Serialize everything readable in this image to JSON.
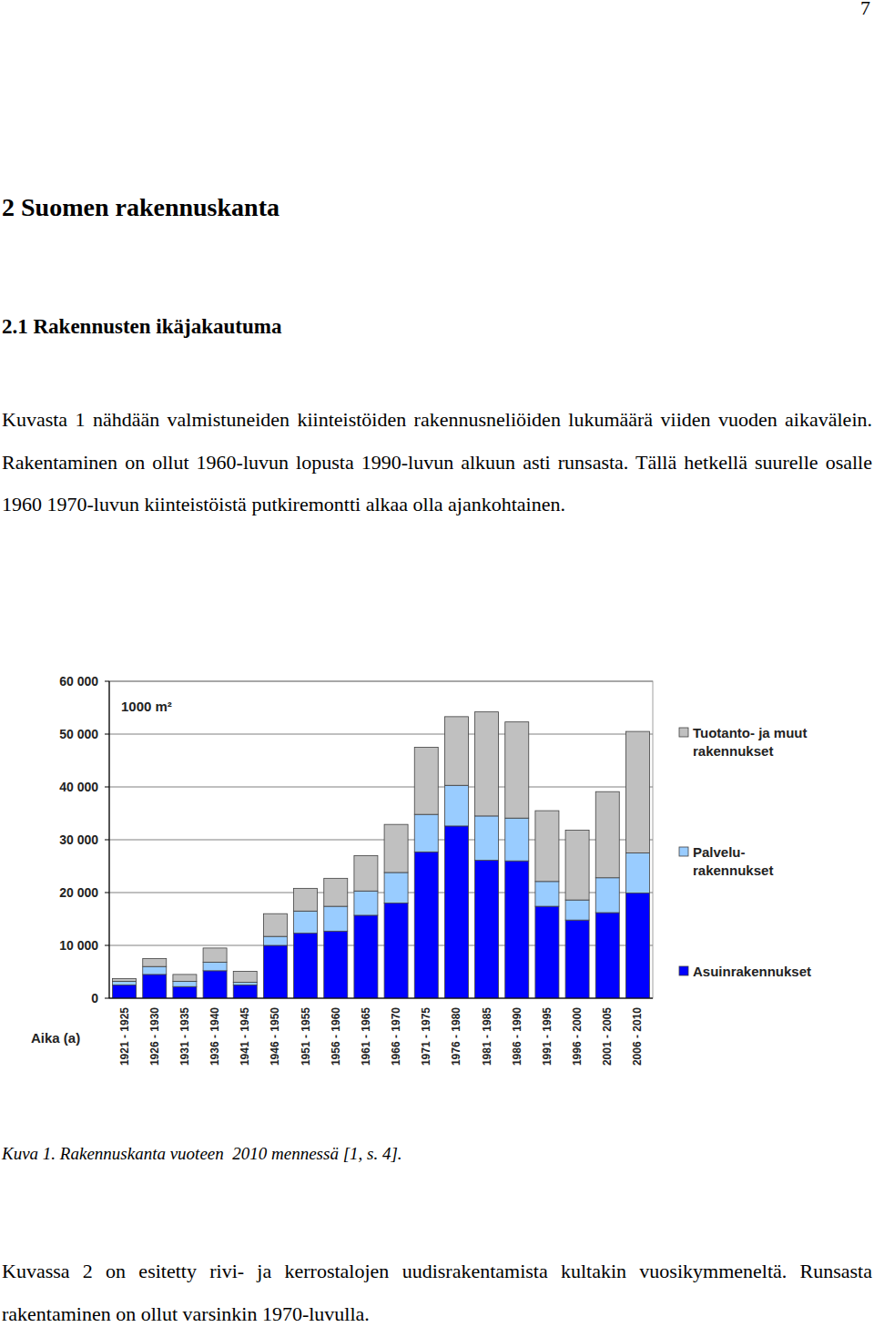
{
  "page_number": "7",
  "heading": "2 Suomen rakennuskanta",
  "subheading": "2.1 Rakennusten ikäjakautuma",
  "paragraphs": [
    "Kuvasta 1 nähdään valmistuneiden kiinteistöiden rakennusneliöiden lukumäärä viiden vuoden aikavälein. Rakentaminen on ollut 1960-luvun lopusta 1990-luvun alkuun asti runsasta. Tällä hetkellä suurelle osalle 1960 1970-luvun kiinteistöistä putkiremontti alkaa olla ajankohtainen.",
    "Kuvassa 2 on esitetty rivi- ja kerrostalojen uudisrakentamista kultakin vuosikymmeneltä. Runsasta rakentaminen on ollut varsinkin 1970-luvulla."
  ],
  "caption": "Kuva 1. Rakennuskanta vuoteen  2010 mennessä [1, s. 4].",
  "chart_data": {
    "type": "bar",
    "stacked": true,
    "grid": true,
    "legend": "right",
    "ylabel": "1000 m²",
    "xlabel": "Aika (a)",
    "categories": [
      "1921 - 1925",
      "1926 - 1930",
      "1931 - 1935",
      "1936 - 1940",
      "1941 - 1945",
      "1946 - 1950",
      "1951 - 1955",
      "1956 - 1960",
      "1961 - 1965",
      "1966 - 1970",
      "1971 - 1975",
      "1976 - 1980",
      "1981 - 1985",
      "1986 - 1990",
      "1991 - 1995",
      "1996 - 2000",
      "2001 - 2005",
      "2006 - 2010"
    ],
    "series": [
      {
        "name": "Asuinrakennukset",
        "color": "#0000ff",
        "values": [
          2500,
          4500,
          2200,
          5200,
          2500,
          10000,
          12300,
          12700,
          15700,
          18000,
          27700,
          32600,
          26100,
          26000,
          17400,
          14800,
          16200,
          19900
        ]
      },
      {
        "name": "Palvelu-rakennukset",
        "color": "#99ccff",
        "values": [
          700,
          1500,
          1000,
          1600,
          500,
          1700,
          4200,
          4700,
          4600,
          5800,
          7100,
          7700,
          8400,
          8100,
          4700,
          3800,
          6600,
          7600
        ]
      },
      {
        "name": "Tuotanto- ja muut rakennukset",
        "color": "#c0c0c0",
        "values": [
          500,
          1500,
          1300,
          2700,
          2100,
          4300,
          4300,
          5300,
          6700,
          9100,
          12700,
          13000,
          19700,
          18200,
          13400,
          13200,
          16300,
          23000
        ]
      }
    ],
    "ylim": [
      0,
      60000
    ],
    "yticks": [
      0,
      {
        "value": 10000,
        "label": "10 000"
      },
      {
        "value": 20000,
        "label": "20 000"
      },
      {
        "value": 30000,
        "label": "30 000"
      },
      {
        "value": 40000,
        "label": "40 000"
      },
      {
        "value": 50000,
        "label": "50 000"
      },
      {
        "value": 60000,
        "label": "60 000"
      }
    ]
  }
}
